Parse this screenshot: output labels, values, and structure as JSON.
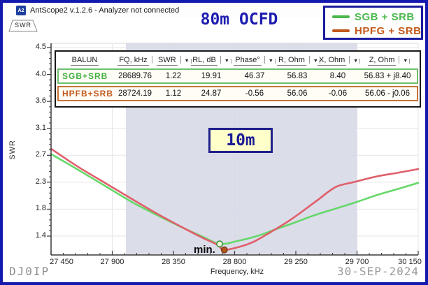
{
  "window": {
    "title": "AntScope2 v.1.2.6 - Analyzer not connected",
    "icon_label": "A2"
  },
  "tabs": {
    "swr": "SWR"
  },
  "header": {
    "title": "80m OCFD"
  },
  "icons": {
    "sort": "▼"
  },
  "legend": {
    "items": [
      {
        "label": "SGB + SRB",
        "color": "#4cb84c"
      },
      {
        "label": "HPFG + SRB",
        "color": "#c2591b"
      }
    ]
  },
  "table": {
    "headers": [
      {
        "label": "BALUN"
      },
      {
        "label": "FQ, kHz"
      },
      {
        "label": "SWR"
      },
      {
        "label": "RL, dB"
      },
      {
        "label": "Phase°"
      },
      {
        "label": "R, Ohm"
      },
      {
        "label": "X, Ohm"
      },
      {
        "label": "Z, Ohm"
      }
    ],
    "rows": [
      {
        "balun": "SGB+SRB",
        "fq": "28689.76",
        "swr": "1.22",
        "rl": "19.91",
        "phase": "46.37",
        "r": "56.83",
        "x": "8.40",
        "z": "56.83 + j8.40"
      },
      {
        "balun": "HPFB+SRB",
        "fq": "28724.19",
        "swr": "1.12",
        "rl": "24.87",
        "phase": "-0.56",
        "r": "56.06",
        "x": "-0.06",
        "z": "56.06 - j0.06"
      }
    ]
  },
  "footer": {
    "left": "DJ0IP",
    "right": "30-SEP-2024"
  },
  "chart_data": {
    "type": "line",
    "title": "80m OCFD",
    "xlabel": "Frequency, kHz",
    "ylabel": "SWR",
    "x_range": [
      27450,
      30150
    ],
    "x_ticks": [
      {
        "value": 27450,
        "label": "27 450"
      },
      {
        "value": 27900,
        "label": "27 900"
      },
      {
        "value": 28350,
        "label": "28 350"
      },
      {
        "value": 28800,
        "label": "28 800"
      },
      {
        "value": 29250,
        "label": "29 250"
      },
      {
        "value": 29700,
        "label": "29 700"
      },
      {
        "value": 30150,
        "label": "30 150"
      }
    ],
    "y_scale": {
      "min": 1.35,
      "max": 4.5
    },
    "y_tick_labels": [
      "4.5",
      "4.0",
      "3.6",
      "3.1",
      "2.7",
      "2.3",
      "1.8",
      "1.4"
    ],
    "band": {
      "from": 28000,
      "to": 29700,
      "label": "10m",
      "color": "#d6d8e6"
    },
    "grid": true,
    "legend_position": "top-right",
    "series": [
      {
        "name": "SGB + SRB",
        "color": "#66d86a",
        "points": [
          [
            27450,
            2.72
          ],
          [
            27640,
            2.47
          ],
          [
            27846,
            2.19
          ],
          [
            28052,
            1.91
          ],
          [
            28257,
            1.67
          ],
          [
            28437,
            1.47
          ],
          [
            28566,
            1.34
          ],
          [
            28689.76,
            1.22
          ],
          [
            28823,
            1.27
          ],
          [
            28977,
            1.36
          ],
          [
            29096,
            1.46
          ],
          [
            29235,
            1.57
          ],
          [
            29389,
            1.7
          ],
          [
            29543,
            1.81
          ],
          [
            29698,
            1.92
          ],
          [
            29852,
            2.04
          ],
          [
            30006,
            2.14
          ],
          [
            30150,
            2.24
          ]
        ]
      },
      {
        "name": "HPFG + SRB",
        "color": "#e05f6b",
        "points": [
          [
            27450,
            2.81
          ],
          [
            27640,
            2.52
          ],
          [
            27846,
            2.24
          ],
          [
            28052,
            1.96
          ],
          [
            28257,
            1.69
          ],
          [
            28437,
            1.47
          ],
          [
            28566,
            1.32
          ],
          [
            28669,
            1.21
          ],
          [
            28724.19,
            1.12
          ],
          [
            28849,
            1.18
          ],
          [
            28952,
            1.27
          ],
          [
            29096,
            1.46
          ],
          [
            29209,
            1.62
          ],
          [
            29302,
            1.77
          ],
          [
            29415,
            1.96
          ],
          [
            29543,
            2.17
          ],
          [
            29672,
            2.25
          ],
          [
            29852,
            2.35
          ],
          [
            30006,
            2.41
          ],
          [
            30150,
            2.47
          ]
        ]
      }
    ],
    "markers": [
      {
        "label": "min.",
        "freq": 28689.76,
        "swr": 1.22,
        "fill": "#f2f7dd",
        "stroke": "#2e8b2e"
      },
      {
        "label": "",
        "freq": 28724.19,
        "swr": 1.12,
        "fill": "#b4571e",
        "stroke": "#7a3a10"
      }
    ]
  }
}
